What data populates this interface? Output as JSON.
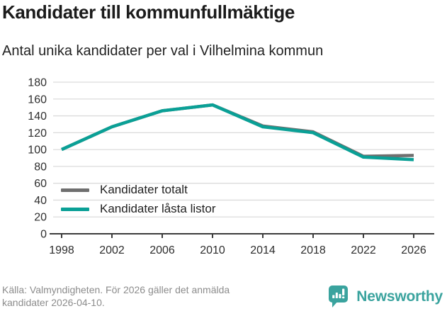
{
  "header": {
    "title": "Kandidater till kommunfullmäktige",
    "subtitle": "Antal unika kandidater per val i Vilhelmina kommun"
  },
  "chart_data": {
    "type": "line",
    "categories": [
      "1998",
      "2002",
      "2006",
      "2010",
      "2014",
      "2018",
      "2022",
      "2026"
    ],
    "series": [
      {
        "name": "Kandidater totalt",
        "color": "#6f6f6f",
        "values": [
          100,
          127,
          146,
          153,
          128,
          121,
          92,
          93
        ]
      },
      {
        "name": "Kandidater låsta listor",
        "color": "#0aa096",
        "values": [
          100,
          127,
          146,
          153,
          127,
          120,
          91,
          88
        ]
      }
    ],
    "ylim": [
      0,
      180
    ],
    "yticks": [
      0,
      20,
      40,
      60,
      80,
      100,
      120,
      140,
      160,
      180
    ],
    "grid": true,
    "legend_position": "inside-bottom-left",
    "colors": {
      "gridline": "#dcdcdc",
      "axis_line": "#3c3c3c",
      "tick_label": "#2e2e2e"
    }
  },
  "footer": {
    "source": "Källa: Valmyndigheten. För 2026 gäller det anmälda kandidater 2026-04-10."
  },
  "branding": {
    "logo_text": "Newsworthy",
    "logo_color": "#3aa39e"
  }
}
